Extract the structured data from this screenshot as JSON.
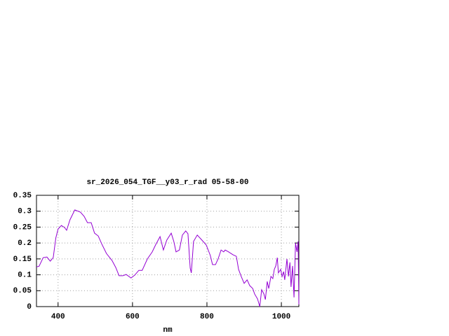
{
  "chart_data": {
    "type": "line",
    "title": "sr_2026_054_TGF__y03_r_rad 05-58-00",
    "x_label": "nm",
    "xlim": [
      342,
      1047
    ],
    "ylim": [
      0,
      0.35
    ],
    "xticks": [
      400,
      600,
      800,
      1000
    ],
    "yticks": [
      0,
      0.05,
      0.1,
      0.15,
      0.2,
      0.25,
      0.3,
      0.35
    ],
    "grid": true,
    "x": [
      342,
      349,
      360,
      370,
      379,
      387,
      394,
      400,
      409,
      417,
      423,
      432,
      445,
      460,
      470,
      479,
      489,
      498,
      508,
      517,
      530,
      545,
      555,
      564,
      574,
      583,
      596,
      606,
      617,
      626,
      640,
      653,
      662,
      674,
      683,
      692,
      704,
      711,
      717,
      726,
      734,
      743,
      749,
      755,
      758,
      764,
      774,
      785,
      798,
      809,
      815,
      823,
      830,
      838,
      845,
      849,
      858,
      870,
      879,
      885,
      892,
      900,
      908,
      915,
      923,
      928,
      936,
      942,
      947,
      953,
      957,
      962,
      966,
      972,
      977,
      981,
      985,
      989,
      992,
      998,
      1002,
      1006,
      1009,
      1015,
      1019,
      1023,
      1026,
      1030,
      1034,
      1038,
      1042,
      1045,
      1047
    ],
    "series": [
      {
        "color": "#9400d3",
        "values": [
          0.125,
          0.127,
          0.154,
          0.156,
          0.143,
          0.154,
          0.216,
          0.244,
          0.255,
          0.249,
          0.24,
          0.273,
          0.304,
          0.297,
          0.284,
          0.264,
          0.264,
          0.231,
          0.222,
          0.198,
          0.167,
          0.145,
          0.123,
          0.097,
          0.097,
          0.101,
          0.09,
          0.099,
          0.114,
          0.114,
          0.15,
          0.172,
          0.194,
          0.22,
          0.178,
          0.209,
          0.231,
          0.205,
          0.172,
          0.178,
          0.225,
          0.238,
          0.229,
          0.121,
          0.106,
          0.205,
          0.225,
          0.211,
          0.194,
          0.161,
          0.132,
          0.132,
          0.15,
          0.178,
          0.172,
          0.178,
          0.172,
          0.163,
          0.158,
          0.117,
          0.095,
          0.073,
          0.084,
          0.066,
          0.057,
          0.04,
          0.024,
          0,
          0.053,
          0.04,
          0.022,
          0.079,
          0.057,
          0.095,
          0.088,
          0.117,
          0.128,
          0.154,
          0.106,
          0.117,
          0.095,
          0.11,
          0.084,
          0.15,
          0.095,
          0.139,
          0.062,
          0.128,
          0.029,
          0.2,
          0.172,
          0.205,
          0.007
        ]
      }
    ]
  }
}
